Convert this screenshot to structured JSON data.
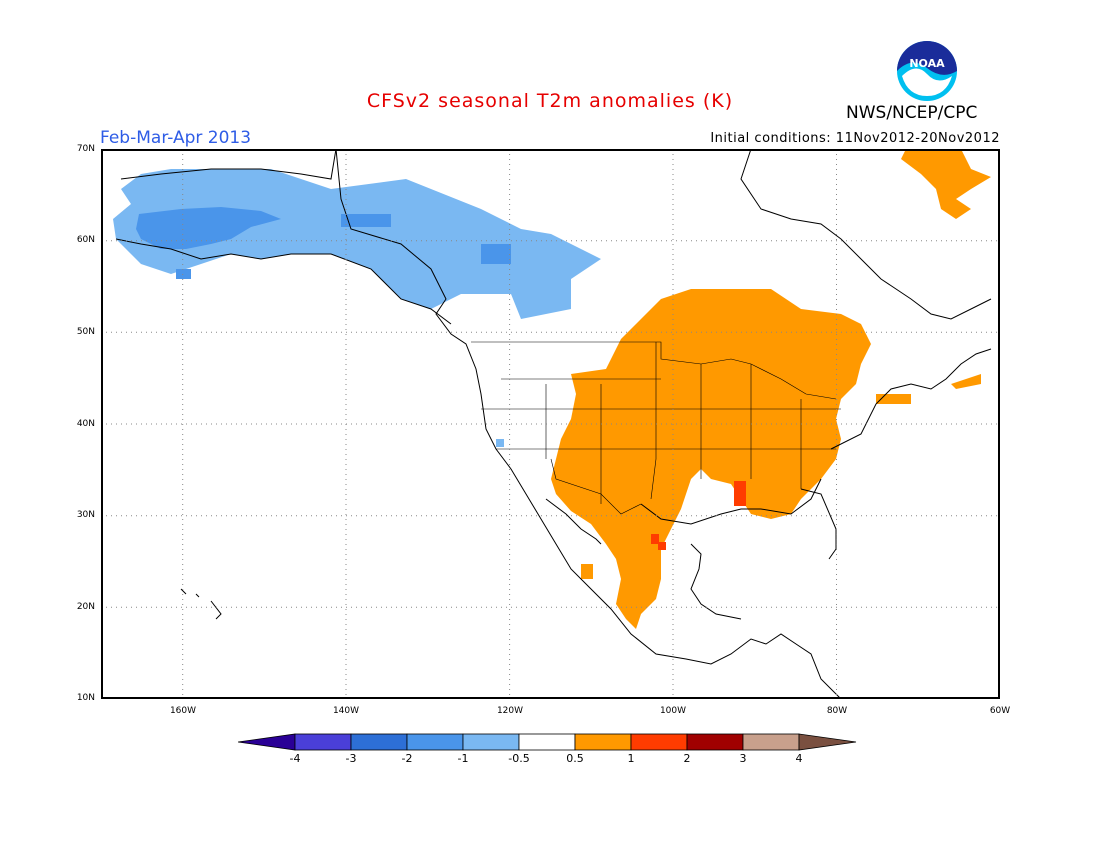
{
  "title": "CFSv2 seasonal T2m anomalies (K)",
  "period": "Feb-Mar-Apr 2013",
  "initial_conditions": "Initial conditions: 11Nov2012-20Nov2012",
  "agency": "NWS/NCEP/CPC",
  "logo_text": "NOAA",
  "lat_labels": [
    "70N",
    "60N",
    "50N",
    "40N",
    "30N",
    "20N",
    "10N"
  ],
  "lon_labels": [
    "160W",
    "140W",
    "120W",
    "100W",
    "80W",
    "60W"
  ],
  "colorbar": {
    "labels": [
      "-4",
      "-3",
      "-2",
      "-1",
      "-0.5",
      "0.5",
      "1",
      "2",
      "3",
      "4"
    ],
    "colors": [
      "#2a0096",
      "#4a3fd8",
      "#2d6fd6",
      "#4a95ea",
      "#7ab8f2",
      "#ffffff",
      "#ff9900",
      "#ff3c00",
      "#a00000",
      "#c8a08c",
      "#7a5040"
    ]
  },
  "legend_colors": {
    "cold_1": "#7ab8f2",
    "cold_2": "#4a95ea",
    "warm_1": "#ff9900",
    "warm_2": "#ff3c00"
  }
}
